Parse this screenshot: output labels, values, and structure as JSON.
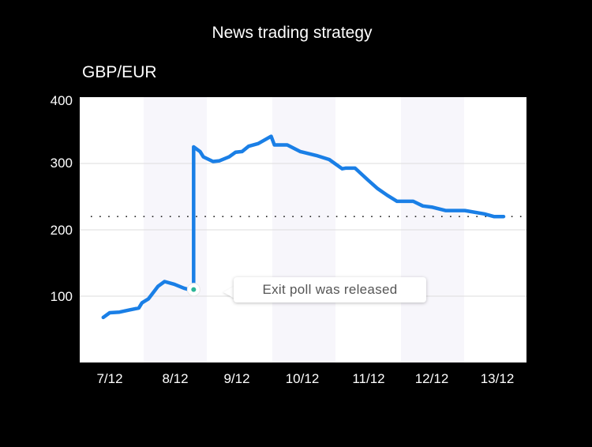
{
  "header": {
    "title": "News trading strategy",
    "pair": "GBP/EUR"
  },
  "colors": {
    "background": "#000000",
    "plot_background": "#ffffff",
    "band": "#f7f6fb",
    "line": "#1a7fe6",
    "gridline": "#dcdcdc",
    "marker": "#2bb596",
    "annotation_text": "#555555"
  },
  "annotation": {
    "text": "Exit poll was released",
    "x_date": "8/12 (late)",
    "y_value": 110
  },
  "chart_data": {
    "type": "line",
    "title": "News trading strategy",
    "ylabel": "GBP/EUR",
    "xlabel": "",
    "x_tick_labels": [
      "7/12",
      "8/12",
      "9/12",
      "10/12",
      "11/12",
      "12/12",
      "13/12"
    ],
    "y_tick_labels": [
      "100",
      "200",
      "300",
      "400"
    ],
    "ylim": [
      0,
      400
    ],
    "grid": true,
    "reference_line": {
      "style": "dotted",
      "value": 220
    },
    "annotations": [
      {
        "text": "Exit poll was released",
        "x": 8.3,
        "y": 110
      }
    ],
    "series": [
      {
        "name": "GBP/EUR",
        "points": [
          [
            6.9,
            68
          ],
          [
            7.0,
            75
          ],
          [
            7.15,
            76
          ],
          [
            7.3,
            79
          ],
          [
            7.45,
            82
          ],
          [
            7.5,
            90
          ],
          [
            7.6,
            96
          ],
          [
            7.75,
            115
          ],
          [
            7.85,
            122
          ],
          [
            8.0,
            118
          ],
          [
            8.15,
            112
          ],
          [
            8.3,
            108
          ],
          [
            8.3,
            325
          ],
          [
            8.4,
            318
          ],
          [
            8.45,
            310
          ],
          [
            8.6,
            303
          ],
          [
            8.7,
            304
          ],
          [
            8.85,
            310
          ],
          [
            8.95,
            317
          ],
          [
            9.05,
            318
          ],
          [
            9.15,
            326
          ],
          [
            9.3,
            330
          ],
          [
            9.5,
            341
          ],
          [
            9.55,
            328
          ],
          [
            9.75,
            328
          ],
          [
            9.95,
            318
          ],
          [
            10.2,
            312
          ],
          [
            10.4,
            306
          ],
          [
            10.6,
            292
          ],
          [
            10.65,
            293
          ],
          [
            10.8,
            293
          ],
          [
            11.0,
            275
          ],
          [
            11.15,
            262
          ],
          [
            11.3,
            252
          ],
          [
            11.45,
            243
          ],
          [
            11.7,
            243
          ],
          [
            11.85,
            236
          ],
          [
            12.0,
            234
          ],
          [
            12.2,
            229
          ],
          [
            12.5,
            229
          ],
          [
            12.8,
            224
          ],
          [
            12.95,
            220
          ],
          [
            13.1,
            220
          ]
        ]
      }
    ]
  }
}
